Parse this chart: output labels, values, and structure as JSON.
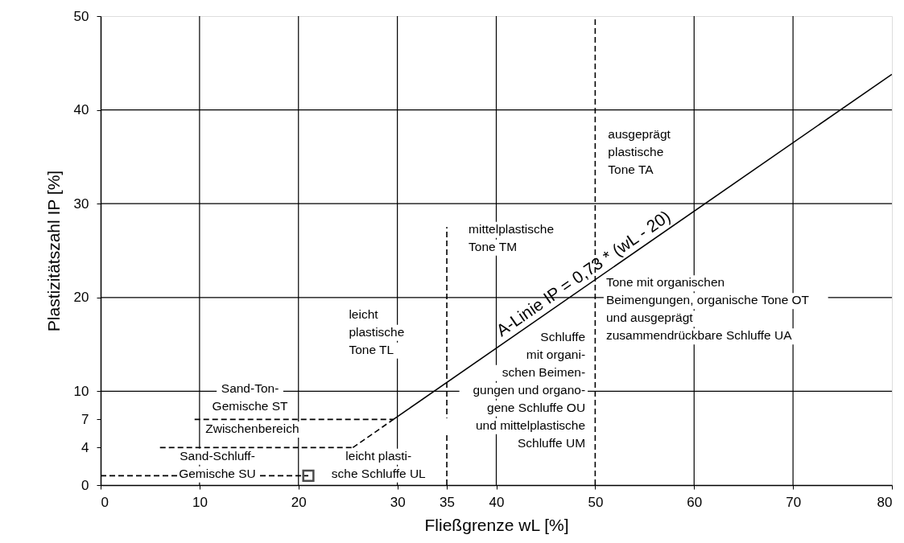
{
  "chart_data": {
    "type": "line",
    "xlabel": "Fließgrenze wL [%]",
    "ylabel": "Plastizitätszahl IP [%]",
    "xlim": [
      0,
      80
    ],
    "ylim": [
      0,
      50
    ],
    "xticks": [
      0,
      10,
      20,
      30,
      35,
      40,
      50,
      60,
      70,
      80
    ],
    "yticks": [
      0,
      4,
      7,
      10,
      20,
      30,
      40,
      50
    ],
    "grid": true,
    "series": [
      {
        "color": "#000000",
        "line_style": "solid",
        "x": [
          29.6,
          80
        ],
        "values": [
          7.0,
          43.8
        ]
      },
      {
        "color": "#000000",
        "line_style": "dashed",
        "x": [
          25.5,
          29.6
        ],
        "values": [
          4,
          7
        ]
      },
      {
        "color": "#000000",
        "line_style": "dashed",
        "x": [
          9.5,
          29.6
        ],
        "values": [
          7,
          7
        ]
      },
      {
        "color": "#000000",
        "line_style": "dashed",
        "x": [
          6,
          25.5
        ],
        "values": [
          4,
          4
        ]
      },
      {
        "color": "#000000",
        "line_style": "dashed",
        "x": [
          0,
          21
        ],
        "values": [
          1,
          1
        ]
      },
      {
        "color": "#000000",
        "line_style": "dashed",
        "x": [
          35,
          35
        ],
        "values": [
          0,
          27.5
        ]
      },
      {
        "color": "#000000",
        "line_style": "dashed",
        "x": [
          50,
          50
        ],
        "values": [
          0,
          50
        ]
      },
      {
        "type": "scatter",
        "color": "#000000",
        "marker": "square",
        "x": [
          21
        ],
        "values": [
          1
        ]
      }
    ],
    "annotations": [
      "A-Linie IP = 0,73 * (wL - 20)",
      "ausgeprägt\nplastische\nTone TA",
      "mittelplastische\nTone TM",
      "Tone mit organischen\nBeimengungen, organische Tone OT\nund ausgeprägt\nzusammendrückbare Schluffe UA",
      "leicht\nplastische\nTone TL",
      "Schluffe\nmit organi-\nschen Beimen-\ngungen und organo-\ngene Schluffe OU\nund mittelplastische\nSchluffe UM",
      "Sand-Ton-\nGemische ST",
      "Zwischenbereich",
      "Sand-Schluff-\nGemische SU",
      "leicht plasti-\nsche Schluffe UL"
    ]
  }
}
